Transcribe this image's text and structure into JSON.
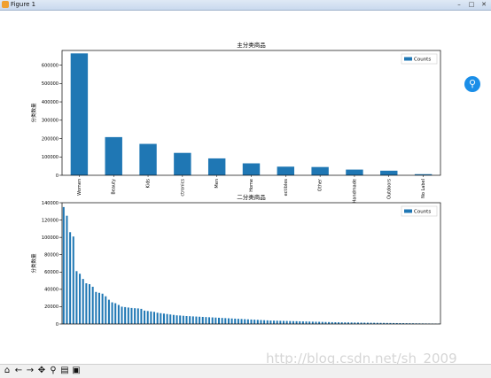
{
  "window": {
    "title": "Figure 1"
  },
  "watermark": "http://blog.csdn.net/sh_2009",
  "toolbar": {
    "buttons": [
      {
        "name": "home-icon",
        "glyph": "⌂"
      },
      {
        "name": "back-icon",
        "glyph": "←"
      },
      {
        "name": "forward-icon",
        "glyph": "→"
      },
      {
        "name": "pan-icon",
        "glyph": "✥"
      },
      {
        "name": "zoom-icon",
        "glyph": "⚲"
      },
      {
        "name": "subplots-icon",
        "glyph": "▤"
      },
      {
        "name": "save-icon",
        "glyph": "▣"
      }
    ]
  },
  "colors": {
    "bar": "#1f77b4",
    "axis": "#000000"
  },
  "chart_data": [
    {
      "type": "bar",
      "title": "主分类商品",
      "ylabel": "分类数量",
      "legend": [
        "Counts"
      ],
      "legend_position": "top-right",
      "ylim": [
        0,
        680000
      ],
      "yticks": [
        0,
        100000,
        200000,
        300000,
        400000,
        500000,
        600000
      ],
      "categories": [
        "Women",
        "Beauty",
        "Kids",
        "Electronics",
        "Men",
        "Home",
        "Vintage & Collectibles",
        "Other",
        "Handmade",
        "Sports & Outdoors",
        "No Label"
      ],
      "tick_labels": [
        "Women",
        "Beauty",
        "Kids",
        "ctronics",
        "Men",
        "Home",
        "ectibles",
        "Other",
        "Handmade",
        "Outdoors",
        "No Label"
      ],
      "series": [
        {
          "name": "Counts",
          "values": [
            664000,
            208000,
            171000,
            122000,
            92000,
            65000,
            47000,
            45000,
            31000,
            25000,
            6000
          ]
        }
      ]
    },
    {
      "type": "bar",
      "title": "二分类商品",
      "ylabel": "分类数量",
      "legend": [
        "Counts"
      ],
      "legend_position": "top-right",
      "ylim": [
        0,
        140000
      ],
      "yticks": [
        0,
        20000,
        40000,
        60000,
        80000,
        100000,
        120000,
        140000
      ],
      "series": [
        {
          "name": "Counts",
          "values": [
            135000,
            125000,
            106000,
            101000,
            61000,
            58000,
            52000,
            47000,
            46000,
            43000,
            37000,
            36000,
            35000,
            32000,
            28000,
            25000,
            24000,
            22000,
            20000,
            19500,
            19000,
            18500,
            18200,
            18000,
            17500,
            15500,
            15000,
            14500,
            14000,
            13000,
            12500,
            12000,
            11500,
            11000,
            10500,
            10000,
            9800,
            9500,
            9200,
            9000,
            8800,
            8600,
            8400,
            8200,
            8000,
            7800,
            7600,
            7400,
            7200,
            7000,
            6800,
            6600,
            6400,
            6200,
            6000,
            5800,
            5600,
            5400,
            5200,
            5000,
            4800,
            4600,
            4400,
            4200,
            4000,
            3900,
            3800,
            3700,
            3600,
            3500,
            3400,
            3300,
            3200,
            3100,
            3000,
            2900,
            2800,
            2700,
            2600,
            2500,
            2400,
            2300,
            2200,
            2100,
            2000,
            1950,
            1900,
            1850,
            1800,
            1750,
            1700,
            1650,
            1600,
            1550,
            1500,
            1450,
            1400,
            1350,
            1300,
            1250,
            1200,
            1150,
            1100,
            1050,
            1000,
            950,
            900,
            850,
            800,
            750,
            700,
            650,
            600,
            550,
            500,
            450,
            400
          ]
        }
      ]
    }
  ]
}
